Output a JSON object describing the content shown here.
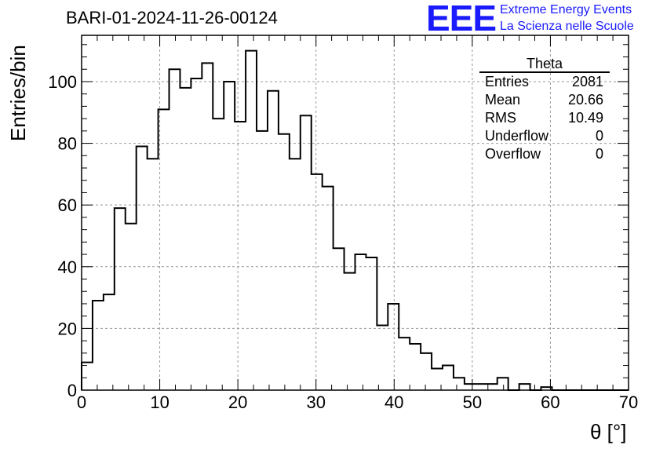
{
  "header": {
    "title": "BARI-01-2024-11-26-00124",
    "logo_text": "EEE",
    "logo_line1": "Extreme Energy Events",
    "logo_line2": "La Scienza nelle Scuole"
  },
  "stats_box": {
    "title": "Theta",
    "rows": [
      {
        "label": "Entries",
        "value": "2081"
      },
      {
        "label": "Mean",
        "value": "20.66"
      },
      {
        "label": "RMS",
        "value": "10.49"
      },
      {
        "label": "Underflow",
        "value": "0"
      },
      {
        "label": "Overflow",
        "value": "0"
      }
    ]
  },
  "colors": {
    "logo": "#1a1aff",
    "histogram": "#000000",
    "grid": "#999999"
  },
  "chart_data": {
    "type": "histogram",
    "title": "BARI-01-2024-11-26-00124",
    "xlabel": "θ [°]",
    "ylabel": "Entries/bin",
    "xlim": [
      0,
      70
    ],
    "ylim": [
      0,
      115
    ],
    "bin_width": 1.4,
    "x_ticks": [
      0,
      10,
      20,
      30,
      40,
      50,
      60,
      70
    ],
    "y_ticks": [
      0,
      20,
      40,
      60,
      80,
      100
    ],
    "grid": true,
    "bin_edges_start": 0,
    "values": [
      9,
      29,
      31,
      59,
      54,
      79,
      75,
      91,
      104,
      98,
      101,
      106,
      88,
      100,
      87,
      110,
      84,
      97,
      83,
      75,
      89,
      70,
      66,
      46,
      38,
      44,
      43,
      21,
      28,
      17,
      15,
      12,
      7,
      8,
      4,
      2,
      2,
      2,
      4,
      0,
      2,
      0,
      1,
      0,
      0,
      0,
      0,
      0,
      0,
      0
    ]
  }
}
